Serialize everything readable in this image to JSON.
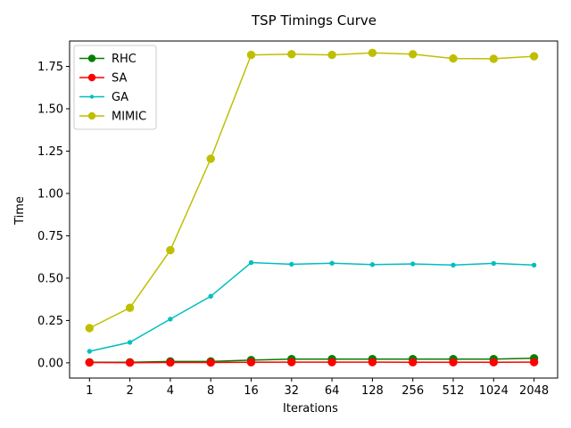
{
  "chart_data": {
    "type": "line",
    "title": "TSP Timings Curve",
    "xlabel": "Iterations",
    "ylabel": "Time",
    "categories": [
      "1",
      "2",
      "4",
      "8",
      "16",
      "32",
      "64",
      "128",
      "256",
      "512",
      "1024",
      "2048"
    ],
    "ylim": [
      -0.09,
      1.9
    ],
    "yticks": [
      "0.00",
      "0.25",
      "0.50",
      "0.75",
      "1.00",
      "1.25",
      "1.50",
      "1.75"
    ],
    "legend_position": "upper-left",
    "grid": false,
    "series": [
      {
        "name": "RHC",
        "color": "#008000",
        "marker": "circle",
        "values": [
          0.003,
          0.003,
          0.008,
          0.008,
          0.016,
          0.022,
          0.022,
          0.022,
          0.022,
          0.022,
          0.022,
          0.027
        ]
      },
      {
        "name": "SA",
        "color": "#ff0000",
        "marker": "circle",
        "values": [
          0.002,
          0.001,
          0.002,
          0.002,
          0.003,
          0.004,
          0.004,
          0.004,
          0.003,
          0.003,
          0.003,
          0.004
        ]
      },
      {
        "name": "GA",
        "color": "#00bfbf",
        "marker": "point",
        "values": [
          0.068,
          0.121,
          0.258,
          0.393,
          0.592,
          0.582,
          0.588,
          0.58,
          0.584,
          0.577,
          0.587,
          0.577
        ]
      },
      {
        "name": "MIMIC",
        "color": "#bfbf00",
        "marker": "circle",
        "values": [
          0.205,
          0.325,
          0.665,
          1.205,
          1.818,
          1.822,
          1.818,
          1.83,
          1.822,
          1.797,
          1.795,
          1.81
        ]
      }
    ]
  }
}
